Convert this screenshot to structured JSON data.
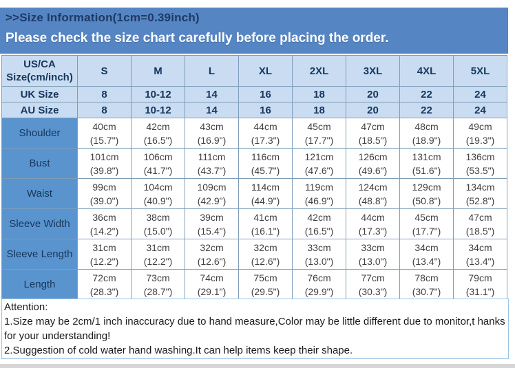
{
  "banner": {
    "title": ">>Size Information(1cm=0.39inch)",
    "notice": "Please check the size chart carefully before placing the order."
  },
  "table": {
    "corner_header_line1": "US/CA",
    "corner_header_line2": "Size(cm/inch)",
    "size_columns": [
      "S",
      "M",
      "L",
      "XL",
      "2XL",
      "3XL",
      "4XL",
      "5XL"
    ],
    "size_rows": [
      {
        "label": "UK Size",
        "values": [
          "8",
          "10-12",
          "14",
          "16",
          "18",
          "20",
          "22",
          "24"
        ]
      },
      {
        "label": "AU Size",
        "values": [
          "8",
          "10-12",
          "14",
          "16",
          "18",
          "20",
          "22",
          "24"
        ]
      }
    ],
    "measurement_rows": [
      {
        "label": "Shoulder",
        "cm": [
          "40cm",
          "42cm",
          "43cm",
          "44cm",
          "45cm",
          "47cm",
          "48cm",
          "49cm"
        ],
        "inch": [
          "(15.7\")",
          "(16.5\")",
          "(16.9\")",
          "(17.3\")",
          "(17.7\")",
          "(18.5\")",
          "(18.9\")",
          "(19.3\")"
        ]
      },
      {
        "label": "Bust",
        "cm": [
          "101cm",
          "106cm",
          "111cm",
          "116cm",
          "121cm",
          "126cm",
          "131cm",
          "136cm"
        ],
        "inch": [
          "(39.8\")",
          "(41.7\")",
          "(43.7\")",
          "(45.7\")",
          "(47.6\")",
          "(49.6\")",
          "(51.6\")",
          "(53.5\")"
        ]
      },
      {
        "label": "Waist",
        "cm": [
          "99cm",
          "104cm",
          "109cm",
          "114cm",
          "119cm",
          "124cm",
          "129cm",
          "134cm"
        ],
        "inch": [
          "(39.0\")",
          "(40.9\")",
          "(42.9\")",
          "(44.9\")",
          "(46.9\")",
          "(48.8\")",
          "(50.8\")",
          "(52.8\")"
        ]
      },
      {
        "label": "Sleeve Width",
        "cm": [
          "36cm",
          "38cm",
          "39cm",
          "41cm",
          "42cm",
          "44cm",
          "45cm",
          "47cm"
        ],
        "inch": [
          "(14.2\")",
          "(15.0\")",
          "(15.4\")",
          "(16.1\")",
          "(16.5\")",
          "(17.3\")",
          "(17.7\")",
          "(18.5\")"
        ]
      },
      {
        "label": "Sleeve Length",
        "cm": [
          "31cm",
          "31cm",
          "32cm",
          "32cm",
          "33cm",
          "33cm",
          "34cm",
          "34cm"
        ],
        "inch": [
          "(12.2\")",
          "(12.2\")",
          "(12.6\")",
          "(12.6\")",
          "(13.0\")",
          "(13.0\")",
          "(13.4\")",
          "(13.4\")"
        ]
      },
      {
        "label": "Length",
        "cm": [
          "72cm",
          "73cm",
          "74cm",
          "75cm",
          "76cm",
          "77cm",
          "78cm",
          "79cm"
        ],
        "inch": [
          "(28.3\")",
          "(28.7\")",
          "(29.1\")",
          "(29.5\")",
          "(29.9\")",
          "(30.3\")",
          "(30.7\")",
          "(31.1\")"
        ]
      }
    ]
  },
  "attention": {
    "title": "Attention:",
    "notes": [
      "1.Size may be 2cm/1 inch inaccuracy due to hand measure,Color may be little different due to monitor,t hanks for your understanding!",
      "2.Suggestion of cold water hand washing.It can help items keep their shape."
    ]
  },
  "colors": {
    "banner_bg": "#5585C3",
    "banner_title_text": "#1E3A66",
    "banner_notice_text": "#FFFFFF",
    "header_cell_bg": "#C9DCF1",
    "label_cell_bg": "#5A94CE",
    "navy_text": "#17375D",
    "data_text": "#3F3F3F",
    "grid_border": "#7F9DB9",
    "attention_border": "#9DC3E6",
    "attention_text": "#1A1A1A",
    "bottom_strip": "#D6D6D6"
  }
}
